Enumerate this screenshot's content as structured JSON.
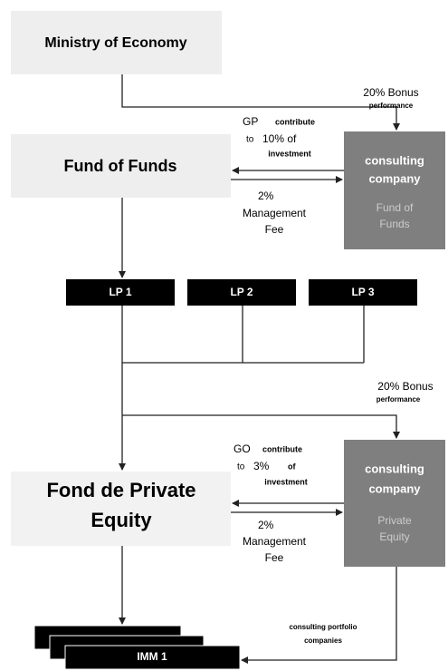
{
  "nodes": {
    "ministry": "Ministry of Economy",
    "fund_of_funds": "Fund of Funds",
    "consulting_fof": {
      "title": [
        "consulting",
        "company"
      ],
      "subtitle": [
        "Fund of",
        "Funds"
      ]
    },
    "lps": [
      "LP 1",
      "LP 2",
      "LP 3"
    ],
    "fund_pe": [
      "Fond de Private",
      "Equity"
    ],
    "consulting_pe": {
      "title": [
        "consulting",
        "company"
      ],
      "subtitle": [
        "Private",
        "Equity"
      ]
    },
    "imm": "IMM 1"
  },
  "labels": {
    "bonus_top": {
      "main": "20% Bonus",
      "sub": "performance"
    },
    "gp_contribute": [
      "GP",
      "contribute",
      "to",
      "10% of",
      "investment"
    ],
    "fee_top": [
      "2%",
      "Management",
      "Fee"
    ],
    "bonus_mid": {
      "main": "20% Bonus",
      "sub": "performance"
    },
    "go_contribute": [
      "GO",
      "contribute",
      "to",
      "3%",
      "of",
      "investment"
    ],
    "fee_bottom": [
      "2%",
      "Management",
      "Fee"
    ],
    "consulting_portfolio": [
      "consulting portfolio",
      "companies"
    ]
  }
}
